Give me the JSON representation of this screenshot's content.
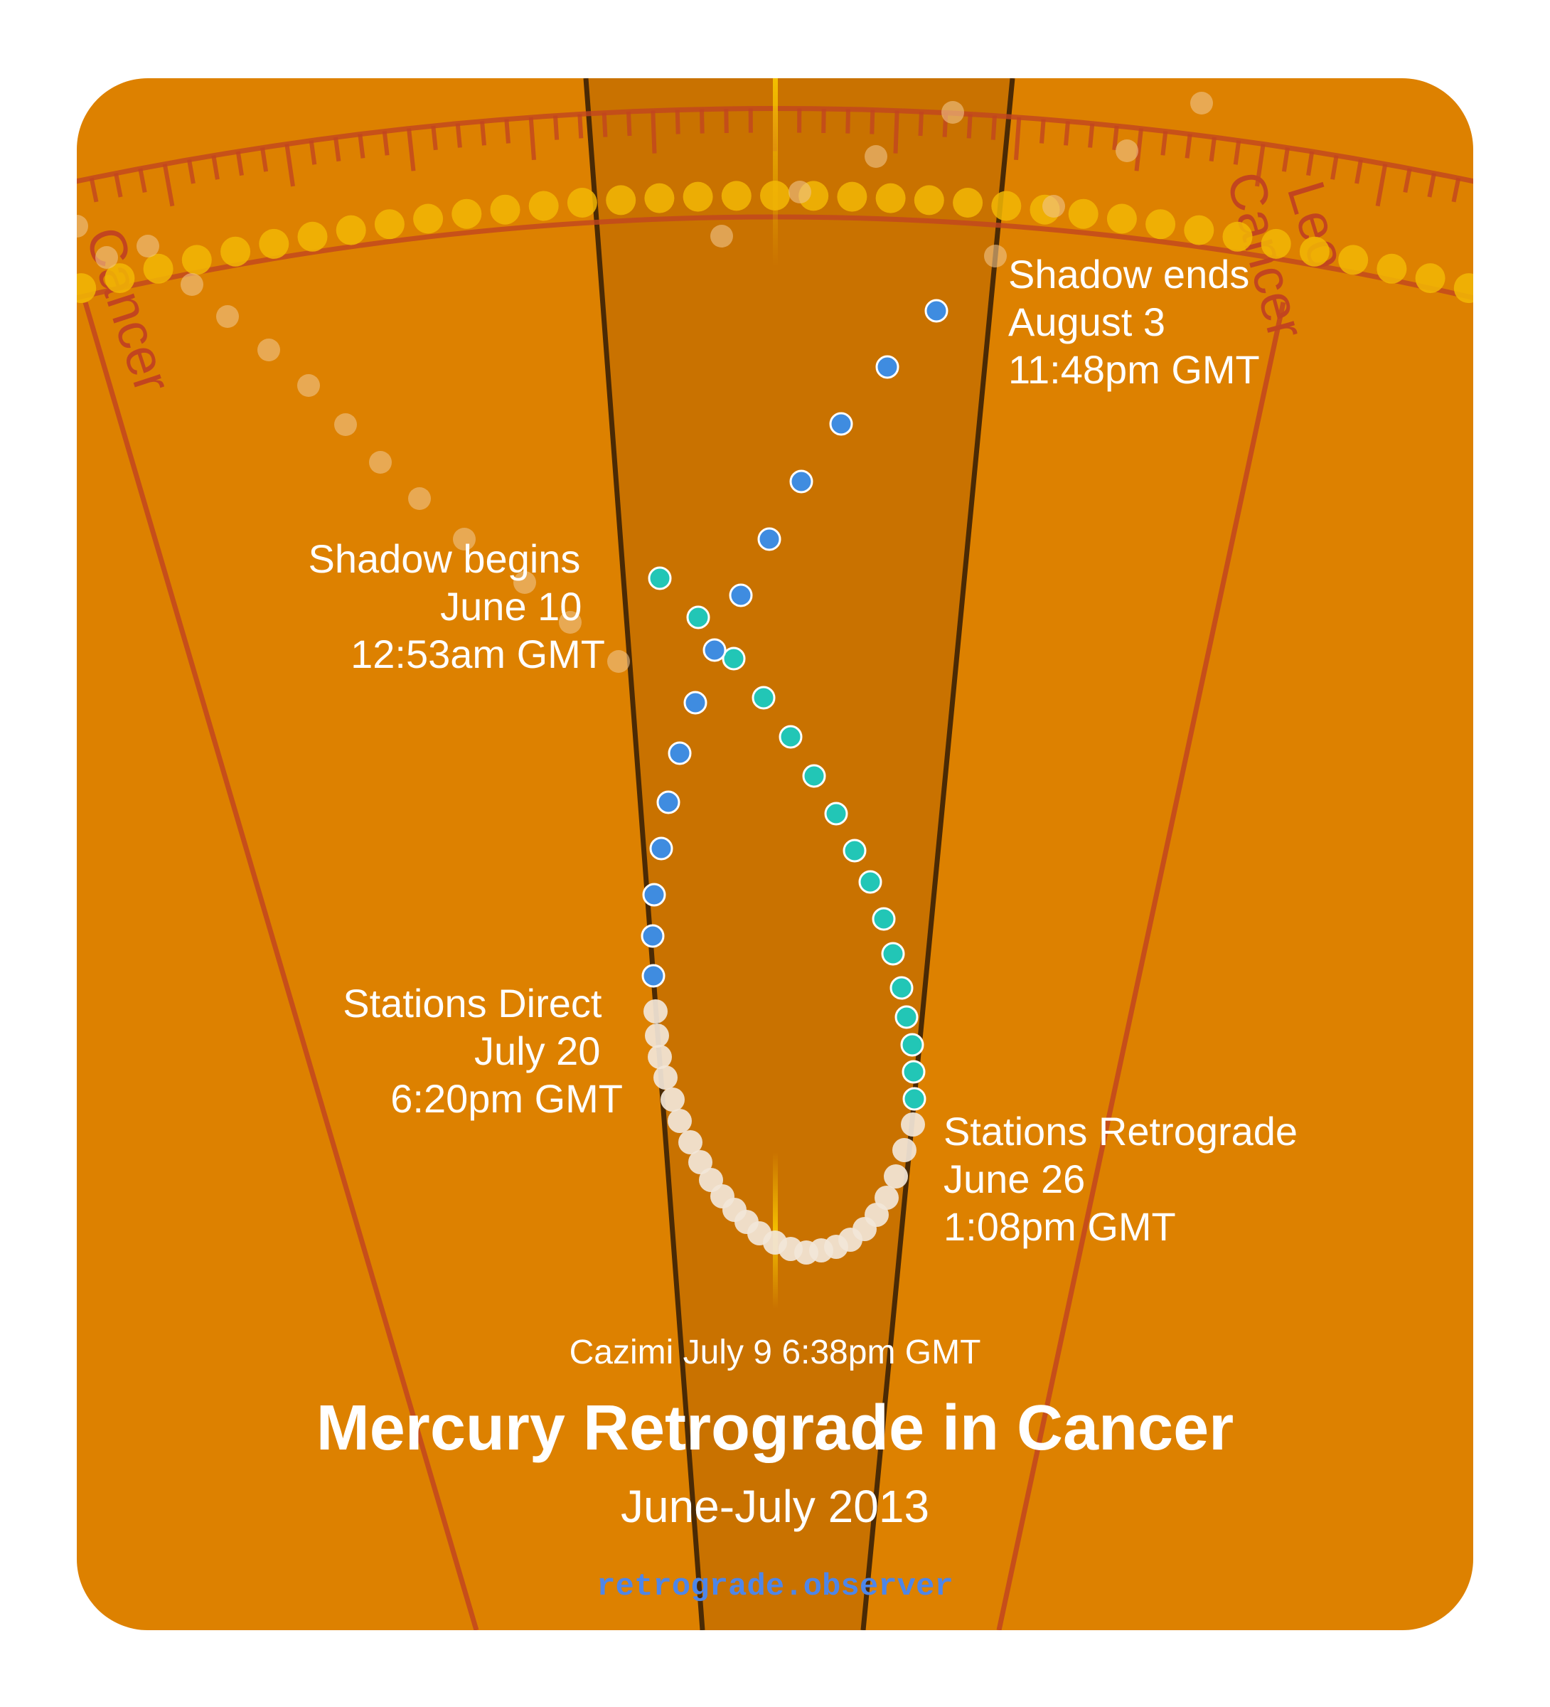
{
  "diagram": {
    "title": "Mercury Retrograde in Cancer",
    "subtitle": "June-July 2013",
    "cazimi": "Cazimi July 9 6:38pm GMT",
    "website": "retrograde.observer",
    "signs": [
      "Cancer",
      "Cancer",
      "Leo"
    ],
    "events": {
      "shadow_begins": [
        "Shadow begins",
        "June 10",
        "12:53am GMT"
      ],
      "stations_retrograde": [
        "Stations Retrograde",
        "June 26",
        "1:08pm GMT"
      ],
      "stations_direct": [
        "Stations Direct",
        "July 20",
        "6:20pm GMT"
      ],
      "shadow_ends": [
        "Shadow ends",
        "August 3",
        "11:48pm GMT"
      ]
    },
    "phase_colors": {
      "pre_shadow": "#f0c48a",
      "entering_shadow": "#22c6b6",
      "retrograde": "#f2e6d8",
      "leaving_shadow": "#3f8ce0",
      "sun": "#f2b705"
    },
    "background": {
      "panel": "#dd8100",
      "sun_band": "#c97200",
      "frame": "#ffffff",
      "zodiac_lines": "#c2451f"
    }
  }
}
